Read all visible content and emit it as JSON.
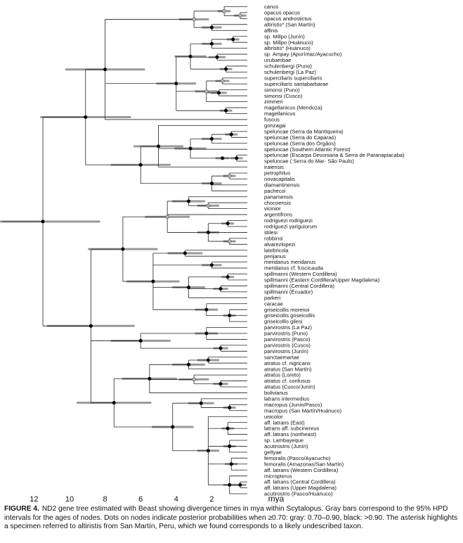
{
  "caption": {
    "label": "FIGURE 4.",
    "text": "ND2 gene tree estimated with Beast showing divergence times in mya within Scytalopus. Gray bars correspond to the 95% HPD intervals for the ages of nodes. Dots on nodes indicate posterior probabilities when ≥0.70: gray: 0.70–0.90, black: >0.90. The asterisk highlights a specimen referred to altiristis from San Martín, Peru, which we found corresponds to a likely undescribed taxon."
  },
  "chart_data": {
    "type": "tree",
    "x_unit": "mya",
    "xlim": [
      14,
      0
    ],
    "x_ticks": [
      12,
      10,
      8,
      6,
      4,
      2
    ],
    "colors": {
      "branch": "#222222",
      "hpd_bar": "#9a9a9a",
      "dot_black": "#000000",
      "dot_gray": "#b5b5b5"
    },
    "taxa": [
      "canus",
      "opacus opacus",
      "opacus androstictus",
      "altiristis* (San Martín)",
      "affinis",
      "sp. Millpo (Junín)",
      "sp. Millpo (Huánuco)",
      "altiristis* (Huánuco)",
      "sp. Ampay (Apurímac/Ayacucho)",
      "urubambae",
      "schulenbergi (Puno)",
      "schulenbergi (La Paz)",
      "superciliaris superciliaris",
      "superciliaris santabarbarae",
      "simonsi (Puno)",
      "simonsi (Cusco)",
      "zimmeri",
      "magellanicus (Mendoza)",
      "magellanicus",
      "fuscus",
      "gonzagai",
      "speluncae (Serra da Mantiqueira)",
      "speluncae (Serra do Caparaó)",
      "speluncae (Serra dos Órgãos)",
      "speluncae (Southern Atlantic Forest)",
      "speluncae (Escarpa Devoniana & Serra de Paranapiacaba)",
      "speluncae ( Serra do Mar- São Paulo)",
      "iraiensis",
      "petrophilus",
      "novacapitalis",
      "diamantinensis",
      "pachecoi",
      "panamensis",
      "chocoensis",
      "vicinior",
      "argentifrons",
      "rodriguezi rodriguezi",
      "rodriguezi yariguiorum",
      "stilesi",
      "robbinsi",
      "alvarezlopezi",
      "latebricola",
      "perijanus",
      "meridanus meridanus",
      "meridanus cf. fuscicauda",
      "spillmanni (Western Cordillera)",
      "spillmanni (Eastern Cordillera/Upper Magdalena)",
      "spillmanni (Central Cordillera)",
      "spillmanni (Ecuador)",
      "parkeri",
      "caracae",
      "griseicollis morenoi",
      "griseicollis griseicollis",
      "griseicollis gilesi",
      "parvirostris (La Paz)",
      "parvirostris (Puno)",
      "parvirostris (Pasco)",
      "parvirostris (Cusco)",
      "parvirostris (Junín)",
      "sanctaemartae",
      "atratus cf. nigricans",
      "atratus (San Martín)",
      "atratus (Loreto)",
      "atratus cf. confusus",
      "atratus (Cusco/Junín)",
      "bolivianus",
      "latrans intermedius",
      "macropus (Junín/Pasco)",
      "macropus (San Martín/Huánuco)",
      "unicolor",
      "aff. latrans (East)",
      "latrans aff. subcinereus",
      "aff. latrans (northeast)",
      "sp. Lambayeque",
      "acutirostris (Junín)",
      "gettyae",
      "femoralis (Pasco/Ayacucho)",
      "femoralis (Amazonas/San Martín)",
      "aff. latrans (Western Cordillera)",
      "micropterus",
      "aff. latrans (Central Cordillera)",
      "aff. latrans (Upper Magdalena)",
      "acutirostris (Pasco/Huánuco)"
    ]
  }
}
